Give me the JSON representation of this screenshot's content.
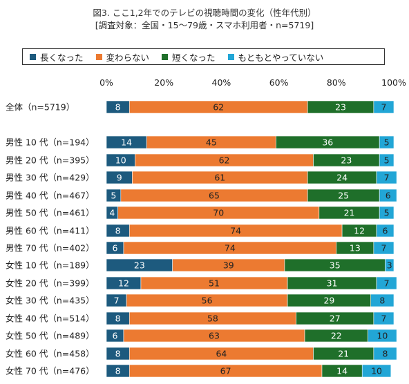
{
  "title": "図3. ここ1,2年でのテレビの視聴時間の変化（性年代別）",
  "subtitle": "[調査対象：全国・15〜79歳・スマホ利用者・n=5719]",
  "chart_data": {
    "type": "bar",
    "orientation": "horizontal",
    "stacked": true,
    "percent": true,
    "xlim": [
      0,
      100
    ],
    "x_ticks": [
      "0%",
      "20%",
      "40%",
      "60%",
      "80%",
      "100%"
    ],
    "legend_position": "top",
    "categories": [
      "全体（n=5719）",
      "男性 10 代（n=194）",
      "男性 20 代（n=395）",
      "男性 30 代（n=429）",
      "男性 40 代（n=467）",
      "男性 50 代（n=461）",
      "男性 60 代（n=411）",
      "男性 70 代（n=402）",
      "女性 10 代（n=189）",
      "女性 20 代（n=399）",
      "女性 30 代（n=435）",
      "女性 40 代（n=514）",
      "女性 50 代（n=489）",
      "女性 60 代（n=458）",
      "女性 70 代（n=476）"
    ],
    "series": [
      {
        "name": "長くなった",
        "color": "#1d5a7e",
        "label_color": "#ffffff",
        "values": [
          8,
          14,
          10,
          9,
          5,
          4,
          8,
          6,
          23,
          12,
          7,
          8,
          6,
          8,
          8
        ]
      },
      {
        "name": "変わらない",
        "color": "#ec7a31",
        "label_color": "#222222",
        "values": [
          62,
          45,
          62,
          61,
          65,
          70,
          74,
          74,
          39,
          51,
          56,
          58,
          63,
          64,
          67
        ]
      },
      {
        "name": "短くなった",
        "color": "#1f6f2a",
        "label_color": "#ffffff",
        "values": [
          23,
          36,
          23,
          24,
          25,
          21,
          12,
          13,
          35,
          31,
          29,
          27,
          22,
          21,
          14
        ]
      },
      {
        "name": "もともとやっていない",
        "color": "#22a6d6",
        "label_color": "#222222",
        "values": [
          7,
          5,
          5,
          7,
          6,
          5,
          6,
          7,
          3,
          7,
          8,
          7,
          10,
          8,
          10
        ]
      }
    ]
  }
}
